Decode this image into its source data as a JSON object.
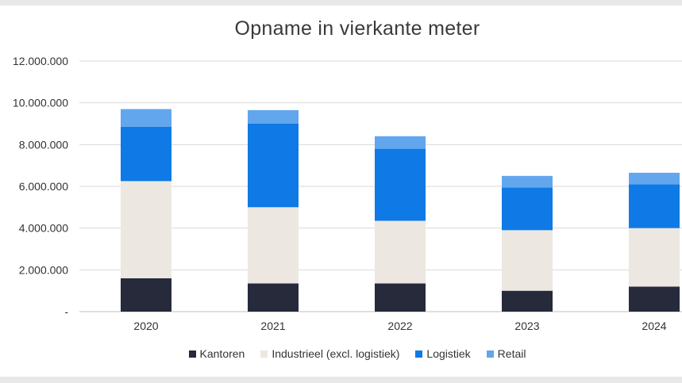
{
  "chart_data": {
    "type": "bar",
    "stacked": true,
    "title": "Opname in vierkante meter",
    "xlabel": "",
    "ylabel": "",
    "categories": [
      "2020",
      "2021",
      "2022",
      "2023",
      "2024"
    ],
    "ylim": [
      0,
      12000000
    ],
    "yticks": [
      0,
      2000000,
      4000000,
      6000000,
      8000000,
      10000000,
      12000000
    ],
    "ytick_labels": [
      "-",
      "2.000.000",
      "4.000.000",
      "6.000.000",
      "8.000.000",
      "10.000.000",
      "12.000.000"
    ],
    "grid": true,
    "legend_position": "bottom",
    "series": [
      {
        "name": "Kantoren",
        "color": "#262a3b",
        "values": [
          1600000,
          1350000,
          1350000,
          1000000,
          1200000
        ]
      },
      {
        "name": "Industrieel (excl. logistiek)",
        "color": "#ece8e1",
        "values": [
          4650000,
          3650000,
          3000000,
          2900000,
          2800000
        ]
      },
      {
        "name": "Logistiek",
        "color": "#0f7ae5",
        "values": [
          2600000,
          4000000,
          3450000,
          2050000,
          2100000
        ]
      },
      {
        "name": "Retail",
        "color": "#62a6ee",
        "values": [
          850000,
          650000,
          600000,
          550000,
          550000
        ]
      }
    ]
  }
}
